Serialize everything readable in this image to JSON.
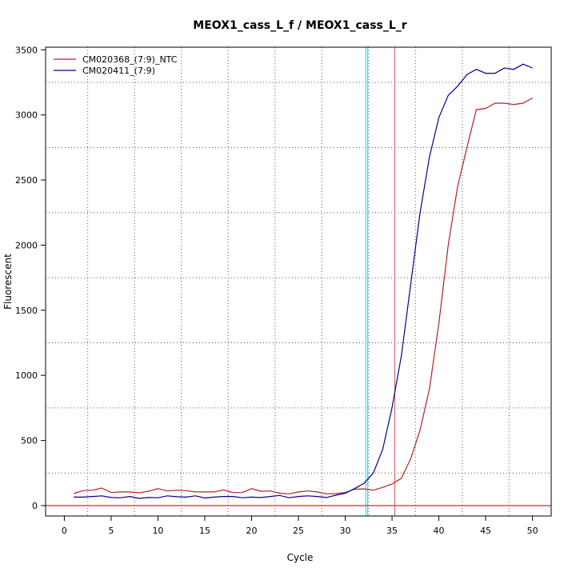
{
  "chart_data": {
    "type": "line",
    "title": "MEOX1_cass_L_f / MEOX1_cass_L_r",
    "xlabel": "Cycle",
    "ylabel": "Fluorescent",
    "xlim": [
      -2,
      52
    ],
    "ylim": [
      -80,
      3520
    ],
    "x_ticks": [
      0,
      5,
      10,
      15,
      20,
      25,
      30,
      35,
      40,
      45,
      50
    ],
    "y_ticks": [
      0,
      500,
      1000,
      1500,
      2000,
      2500,
      3000,
      3500
    ],
    "grid": true,
    "grid_x": [
      2.5,
      7.5,
      12.5,
      17.5,
      22.5,
      27.5,
      32.5,
      37.5,
      42.5,
      47.5
    ],
    "grid_y": [
      250,
      750,
      1250,
      1750,
      2250,
      2750,
      3250
    ],
    "legend_position": "top-left",
    "x": [
      1,
      2,
      3,
      4,
      5,
      6,
      7,
      8,
      9,
      10,
      11,
      12,
      13,
      14,
      15,
      16,
      17,
      18,
      19,
      20,
      21,
      22,
      23,
      24,
      25,
      26,
      27,
      28,
      29,
      30,
      31,
      32,
      33,
      34,
      35,
      36,
      37,
      38,
      39,
      40,
      41,
      42,
      43,
      44,
      45,
      46,
      47,
      48,
      49,
      50
    ],
    "series": [
      {
        "name": "CM020368_(7:9)_NTC",
        "color": "#b22222",
        "values": [
          92,
          115,
          118,
          135,
          100,
          105,
          105,
          98,
          110,
          130,
          112,
          118,
          115,
          105,
          105,
          105,
          120,
          100,
          100,
          130,
          110,
          112,
          95,
          90,
          105,
          112,
          105,
          90,
          92,
          100,
          125,
          128,
          118,
          140,
          165,
          210,
          360,
          580,
          900,
          1400,
          2000,
          2450,
          2750,
          3040,
          3050,
          3090,
          3090,
          3080,
          3090,
          3130
        ]
      },
      {
        "name": "CM020411_(7:9)",
        "color": "#00008b",
        "values": [
          65,
          65,
          70,
          75,
          62,
          60,
          70,
          55,
          62,
          60,
          75,
          68,
          65,
          75,
          58,
          65,
          70,
          70,
          60,
          65,
          62,
          70,
          78,
          60,
          70,
          75,
          70,
          62,
          80,
          95,
          130,
          170,
          250,
          430,
          750,
          1150,
          1700,
          2250,
          2680,
          2980,
          3150,
          3220,
          3310,
          3350,
          3320,
          3320,
          3360,
          3350,
          3390,
          3360
        ]
      }
    ],
    "threshold": {
      "value": 0,
      "color": "#cc3333"
    },
    "vlines": [
      {
        "x": 32.2,
        "color": "#00e5ee"
      },
      {
        "x": 32.4,
        "color": "#00e5ee"
      },
      {
        "x": 35.3,
        "color": "#cc5555"
      }
    ]
  }
}
